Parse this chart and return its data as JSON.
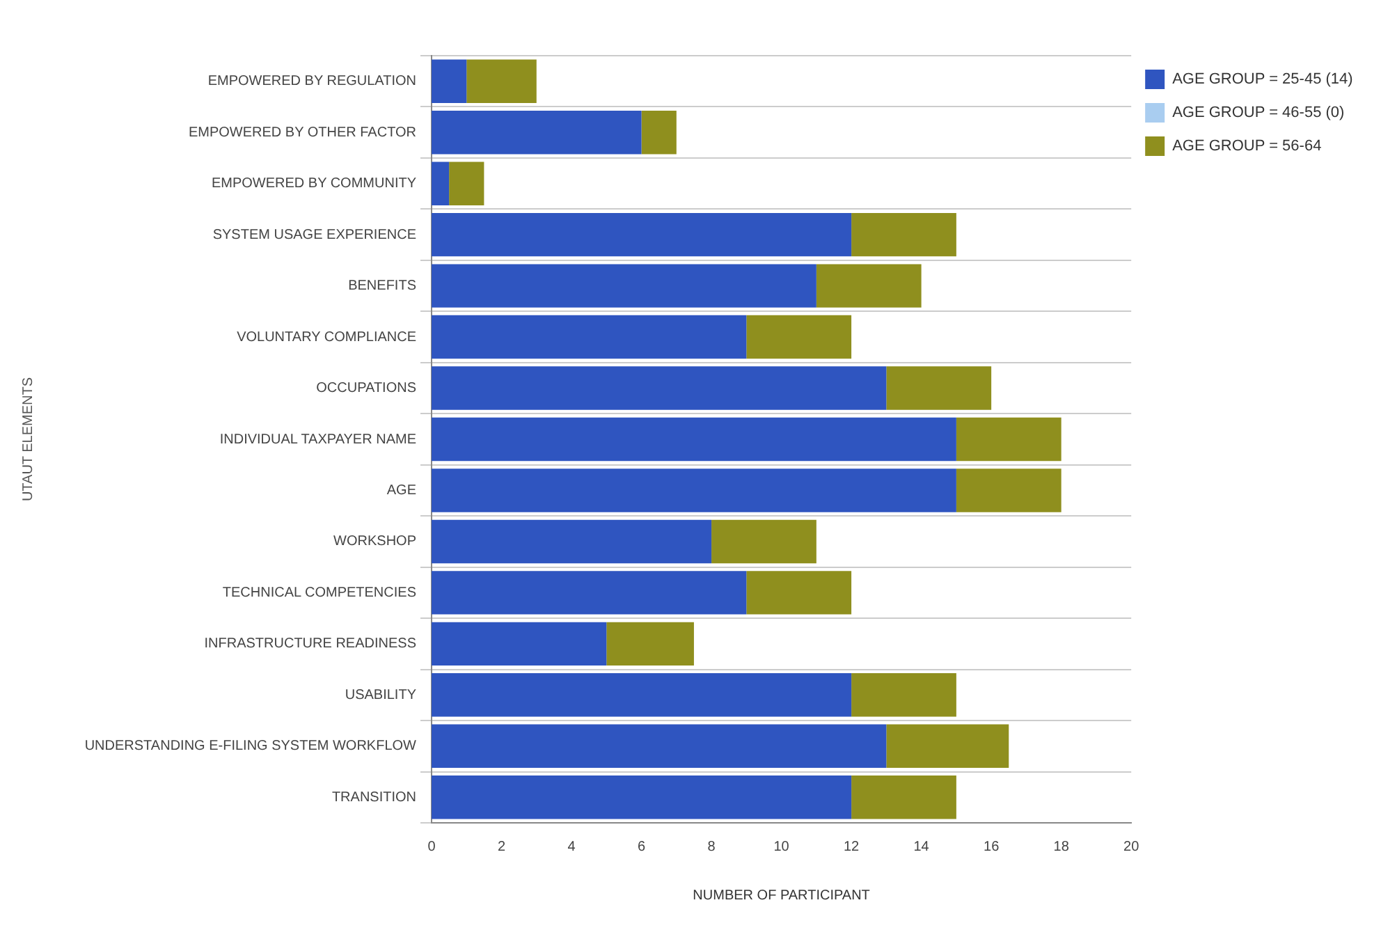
{
  "chart_data": {
    "type": "bar",
    "orientation": "horizontal",
    "stacked": true,
    "categories": [
      "EMPOWERED BY REGULATION",
      "EMPOWERED BY OTHER FACTOR",
      "EMPOWERED BY COMMUNITY",
      "SYSTEM USAGE EXPERIENCE",
      "BENEFITS",
      "VOLUNTARY COMPLIANCE",
      "OCCUPATIONS",
      "INDIVIDUAL TAXPAYER NAME",
      "AGE",
      "WORKSHOP",
      "TECHNICAL COMPETENCIES",
      "INFRASTRUCTURE READINESS",
      "USABILITY",
      "UNDERSTANDING E-FILING SYSTEM WORKFLOW",
      "TRANSITION"
    ],
    "series": [
      {
        "name": "AGE GROUP = 25-45 (14)",
        "color": "#2f55c0",
        "values": [
          1,
          6,
          0.5,
          12,
          11,
          9,
          13,
          15,
          15,
          8,
          9,
          5,
          12,
          13,
          12
        ]
      },
      {
        "name": "AGE GROUP = 46-55 (0)",
        "color": "#a9cdf0",
        "values": [
          0,
          0,
          0,
          0,
          0,
          0,
          0,
          0,
          0,
          0,
          0,
          0,
          0,
          0,
          0
        ]
      },
      {
        "name": "AGE GROUP = 56-64",
        "color": "#8f8f1e",
        "values": [
          2,
          1,
          1,
          3,
          3,
          3,
          3,
          3,
          3,
          3,
          3,
          2.5,
          3,
          3.5,
          3
        ]
      }
    ],
    "xlim": [
      0,
      20
    ],
    "xticks": [
      0,
      2,
      4,
      6,
      8,
      10,
      12,
      14,
      16,
      18,
      20
    ],
    "xlabel": "NUMBER OF PARTICIPANT",
    "ylabel": "UTAUT ELEMENTS",
    "grid": "y",
    "legend": "top right"
  }
}
